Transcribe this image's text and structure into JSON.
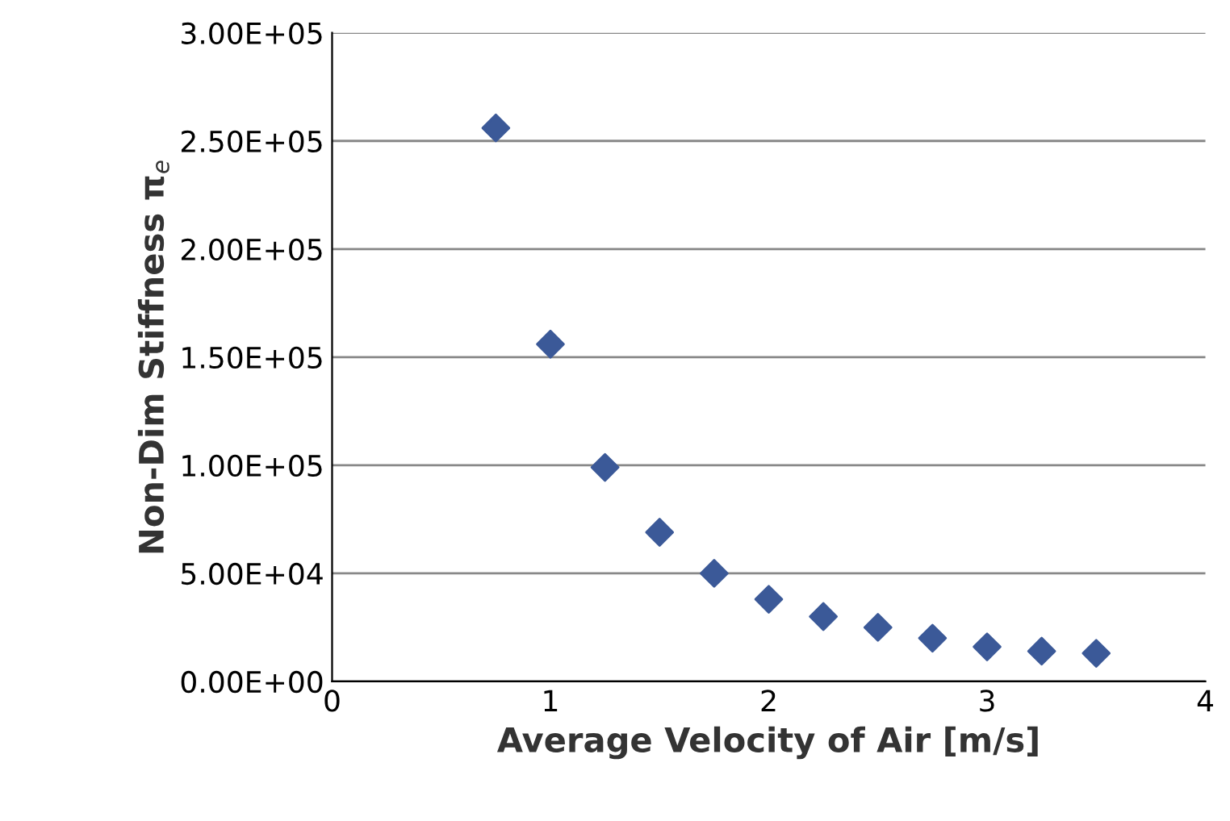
{
  "chart_data": {
    "type": "scatter",
    "xlabel": "Average Velocity of Air [m/s]",
    "ylabel": "Non-Dim Stiffness π$_{e}$",
    "x": [
      0.75,
      1.0,
      1.25,
      1.5,
      1.75,
      2.0,
      2.25,
      2.5,
      2.75,
      3.0,
      3.25,
      3.5
    ],
    "series": [
      {
        "color": "#3b5998",
        "values": [
          256000,
          156000,
          99000,
          69000,
          50000,
          38000,
          30000,
          25000,
          20000,
          16000,
          14000,
          13000
        ]
      }
    ],
    "xlim": [
      0,
      4
    ],
    "xticks": [
      0,
      1,
      2,
      3,
      4
    ],
    "ylim": [
      0,
      300000
    ],
    "yticks": [
      {
        "value": 0,
        "label": "0.00E+00"
      },
      {
        "value": 50000,
        "label": "5.00E+04"
      },
      {
        "value": 100000,
        "label": "1.00E+05"
      },
      {
        "value": 150000,
        "label": "1.50E+05"
      },
      {
        "value": 200000,
        "label": "2.00E+05"
      },
      {
        "value": 250000,
        "label": "2.50E+05"
      },
      {
        "value": 300000,
        "label": "3.00E+05"
      }
    ],
    "grid": "y",
    "marker": "diamond",
    "legend": false
  }
}
